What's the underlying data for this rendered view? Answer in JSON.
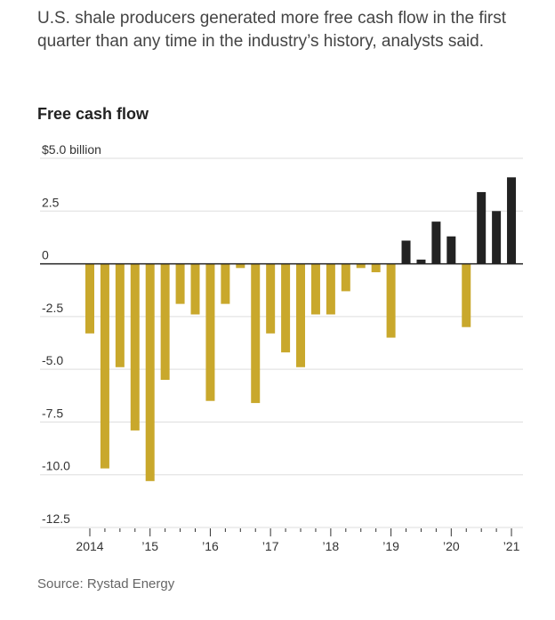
{
  "headline": "U.S. shale producers generated more free cash flow in the first quarter than any time in the industry’s history, analysts said.",
  "source": "Source: Rystad Energy",
  "colors": {
    "negative": "#c9a82c",
    "positive": "#222222",
    "grid": "#dddddd",
    "zero": "#222222"
  },
  "chart_data": {
    "type": "bar",
    "title": "Free cash flow",
    "ylabel": "$5.0 billion",
    "ylim": [
      -12.5,
      5.0
    ],
    "y_ticks": [
      {
        "value": 5.0,
        "label": "$5.0 billion"
      },
      {
        "value": 2.5,
        "label": "2.5"
      },
      {
        "value": 0,
        "label": "0"
      },
      {
        "value": -2.5,
        "label": "-2.5"
      },
      {
        "value": -5.0,
        "label": "-5.0"
      },
      {
        "value": -7.5,
        "label": "-7.5"
      },
      {
        "value": -10.0,
        "label": "-10.0"
      },
      {
        "value": -12.5,
        "label": "-12.5"
      }
    ],
    "x_labels": [
      {
        "index": 0,
        "label": "2014"
      },
      {
        "index": 4,
        "label": "’15"
      },
      {
        "index": 8,
        "label": "’16"
      },
      {
        "index": 12,
        "label": "’17"
      },
      {
        "index": 16,
        "label": "’18"
      },
      {
        "index": 20,
        "label": "’19"
      },
      {
        "index": 24,
        "label": "’20"
      },
      {
        "index": 28,
        "label": "’21"
      }
    ],
    "values": [
      -3.3,
      -9.7,
      -4.9,
      -7.9,
      -10.3,
      -5.5,
      -1.9,
      -2.4,
      -6.5,
      -1.9,
      -0.2,
      -6.6,
      -3.3,
      -4.2,
      -4.9,
      -2.4,
      -2.4,
      -1.3,
      -0.2,
      -0.4,
      -3.5,
      1.1,
      0.2,
      2.0,
      1.3,
      -3.0,
      3.4,
      2.5,
      4.1
    ]
  }
}
